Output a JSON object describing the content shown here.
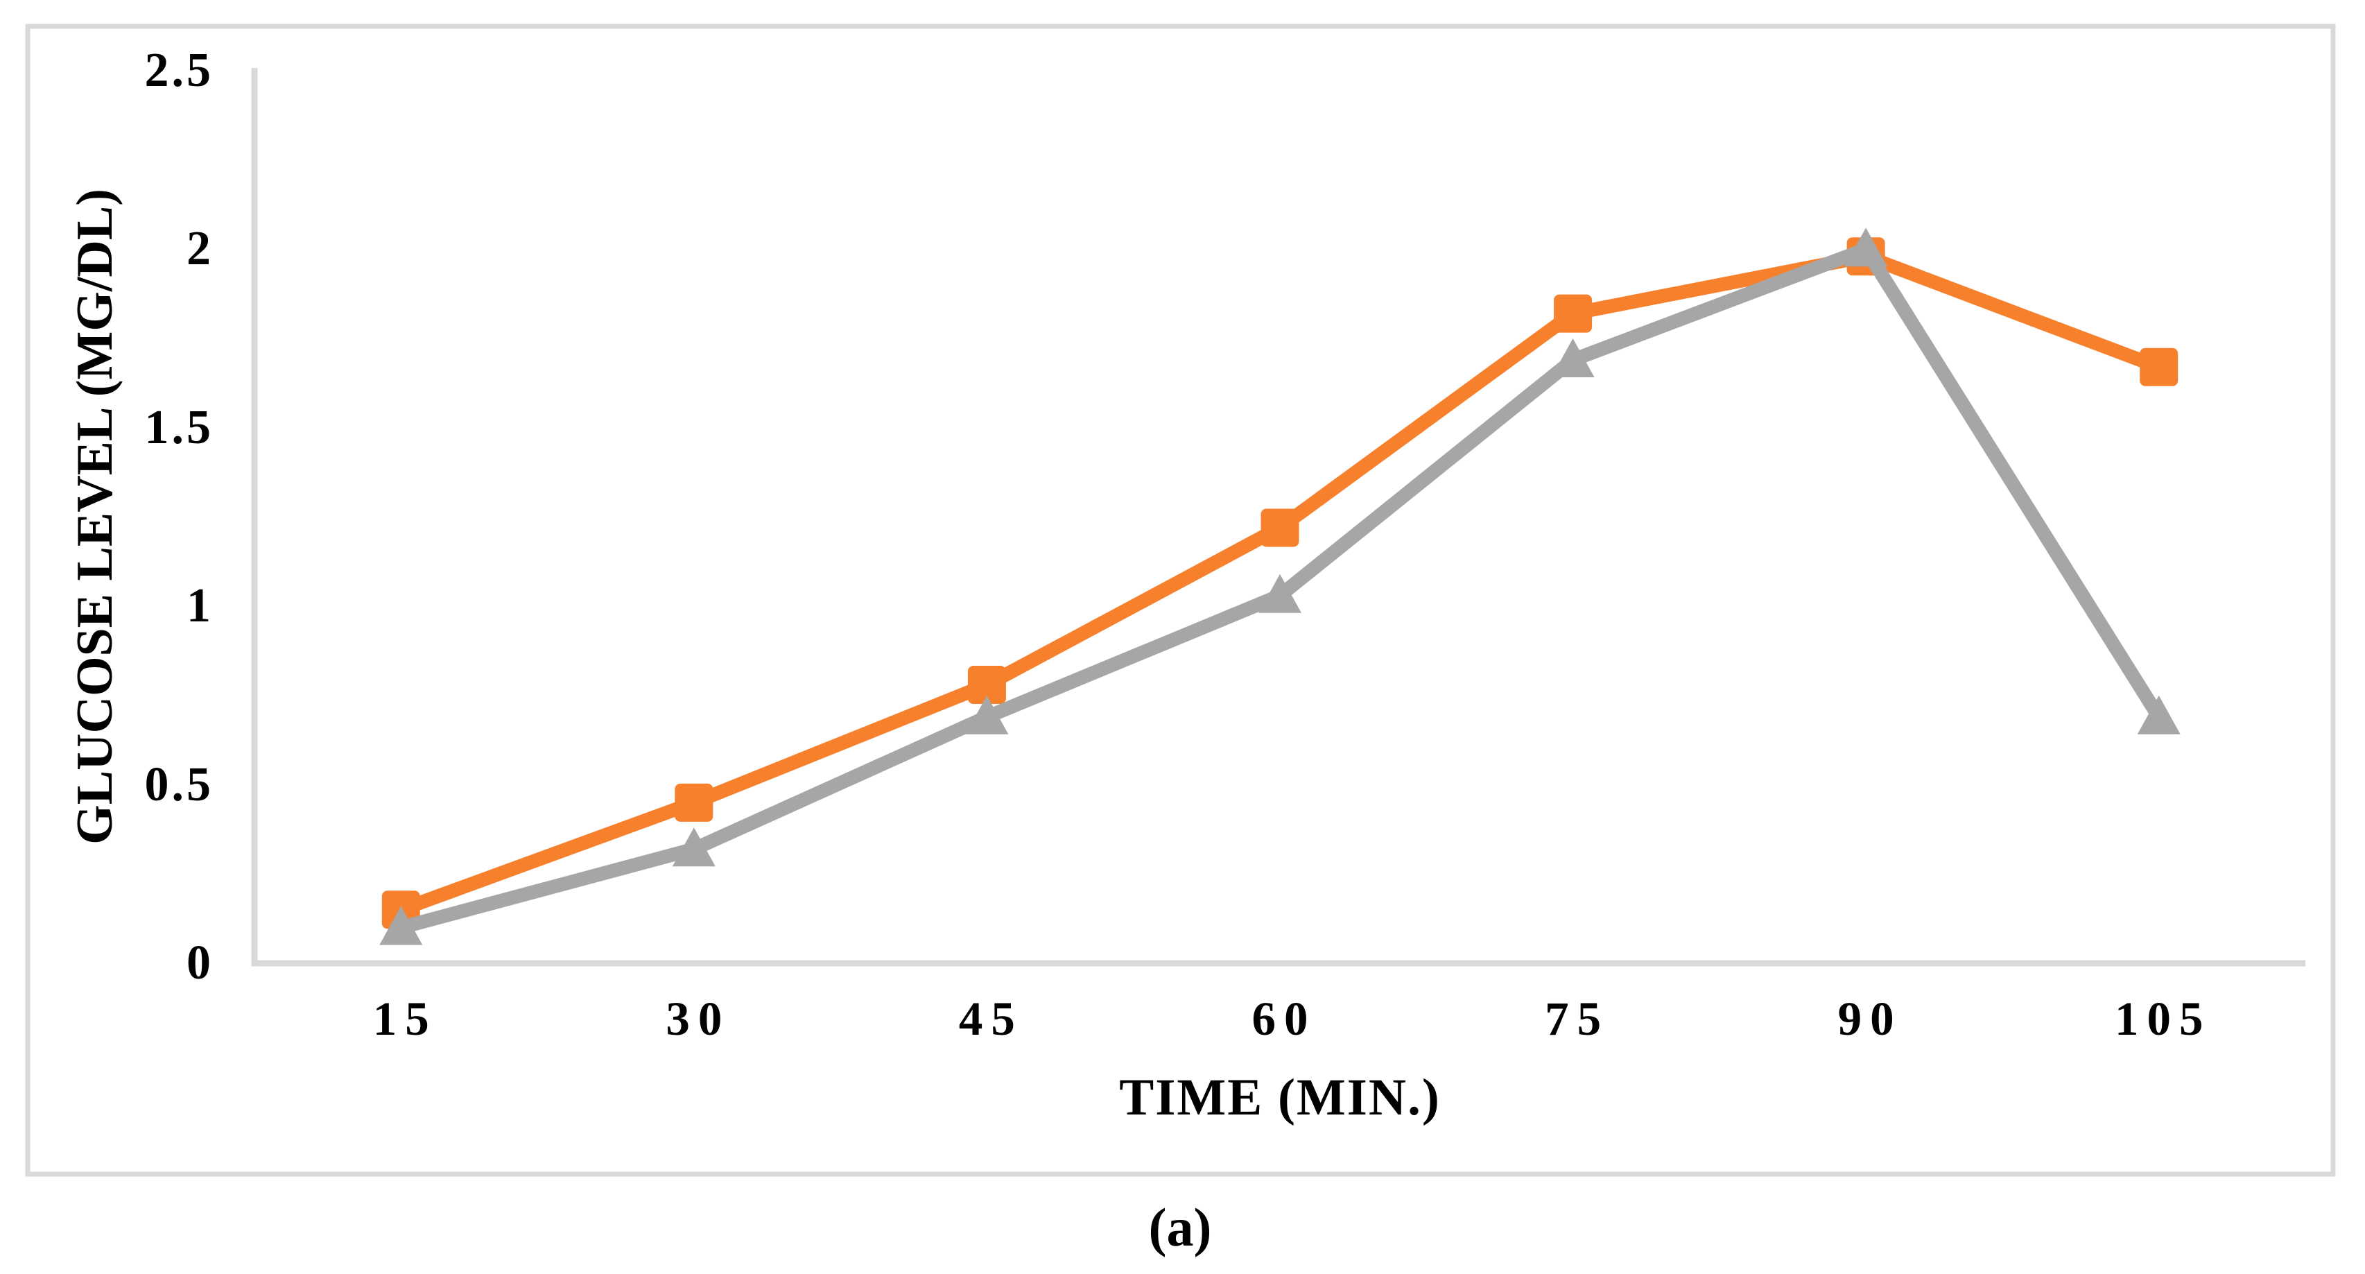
{
  "figure": {
    "caption": "(a)"
  },
  "chart_data": {
    "type": "line",
    "title": "",
    "xlabel": "TIME (MIN.)",
    "ylabel": "GLUCOSE LEVEL (MG/DL)",
    "categories": [
      15,
      30,
      45,
      60,
      75,
      90,
      105
    ],
    "x_tick_labels": [
      "15",
      "30",
      "45",
      "60",
      "75",
      "90",
      "105"
    ],
    "y_ticks": [
      0,
      0.5,
      1,
      1.5,
      2,
      2.5
    ],
    "y_tick_labels": [
      "0",
      "0.5",
      "1",
      "1.5",
      "2",
      "2.5"
    ],
    "ylim": [
      0,
      2.5
    ],
    "grid": false,
    "legend_position": "none",
    "series": [
      {
        "name": "orange-squares-series",
        "marker": "square",
        "color": "#F7802C",
        "values": [
          0.15,
          0.45,
          0.78,
          1.22,
          1.82,
          1.98,
          1.67
        ]
      },
      {
        "name": "gray-triangles-series",
        "marker": "triangle",
        "color": "#A6A6A6",
        "values": [
          0.1,
          0.32,
          0.69,
          1.03,
          1.69,
          2.0,
          0.69
        ]
      }
    ],
    "axis_color": "#D9D9D9",
    "frame_color": "#D9D9D9",
    "text_color": "#000000"
  }
}
